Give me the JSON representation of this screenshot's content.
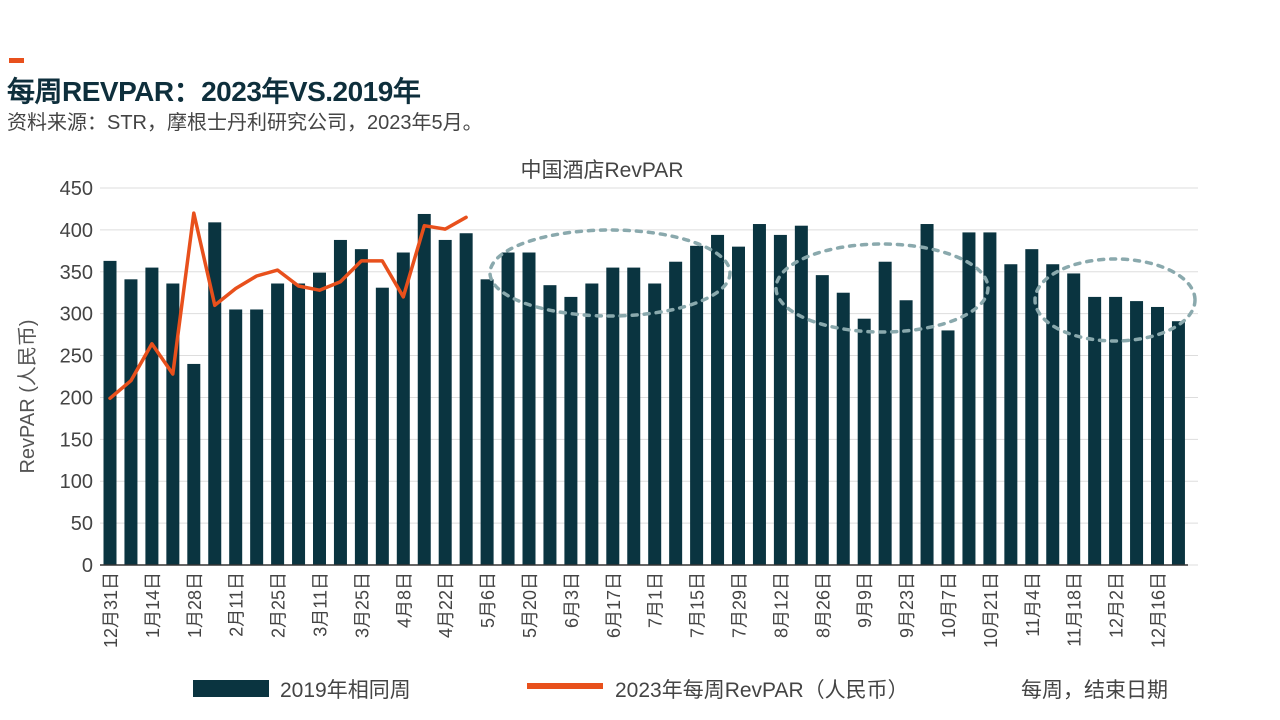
{
  "header": {
    "title": "每周REVPAR：2023年VS.2019年",
    "subtitle": "资料来源：STR，摩根士丹利研究公司，2023年5月。"
  },
  "colors": {
    "bar": "#0a3440",
    "line": "#e8501c",
    "grid": "#dddddd",
    "highlight": "#8aa9ad",
    "accent": "#e8501c"
  },
  "chart_data": {
    "type": "bar",
    "title": "中国酒店RevPAR",
    "ylabel": "RevPAR (人民币)",
    "xlabel": "每周，结束日期",
    "ylim": [
      0,
      450
    ],
    "yticks": [
      0,
      50,
      100,
      150,
      200,
      250,
      300,
      350,
      400,
      450
    ],
    "grid": true,
    "legend_position": "bottom",
    "tick_labels": [
      "12月31日",
      "1月14日",
      "1月28日",
      "2月11日",
      "2月25日",
      "3月11日",
      "3月25日",
      "4月8日",
      "4月22日",
      "5月6日",
      "5月20日",
      "6月3日",
      "6月17日",
      "7月1日",
      "7月15日",
      "7月29日",
      "8月12日",
      "8月26日",
      "9月9日",
      "9月23日",
      "10月7日",
      "10月21日",
      "11月4日",
      "11月18日",
      "12月2日",
      "12月16日"
    ],
    "series": [
      {
        "name": "2019年相同周",
        "type": "bar",
        "values": [
          363,
          341,
          355,
          336,
          240,
          409,
          305,
          305,
          336,
          336,
          349,
          388,
          377,
          331,
          373,
          419,
          388,
          396,
          341,
          373,
          373,
          334,
          320,
          336,
          355,
          355,
          336,
          362,
          381,
          394,
          380,
          407,
          394,
          405,
          346,
          325,
          294,
          362,
          316,
          407,
          280,
          397,
          397,
          359,
          377,
          359,
          348,
          320,
          320,
          315,
          308,
          291
        ]
      },
      {
        "name": "2023年每周RevPAR（人民币）",
        "type": "line",
        "values": [
          199,
          220,
          264,
          228,
          420,
          310,
          330,
          345,
          352,
          333,
          328,
          338,
          363,
          363,
          320,
          405,
          401,
          415
        ]
      }
    ]
  }
}
